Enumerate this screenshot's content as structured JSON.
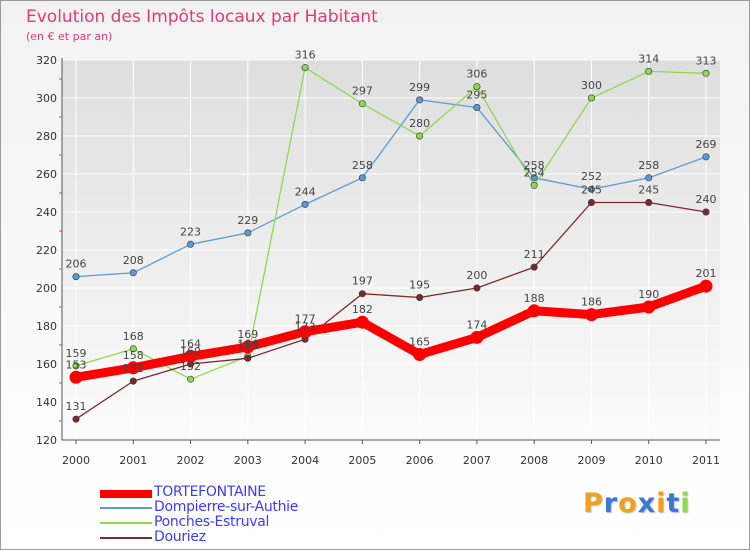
{
  "chart_data": {
    "type": "line",
    "title": "Evolution des Impôts locaux par Habitant",
    "subtitle": "(en € et par an)",
    "xlabel": "",
    "ylabel": "",
    "ylim": [
      120,
      320
    ],
    "yticks": [
      120,
      140,
      160,
      180,
      200,
      220,
      240,
      260,
      280,
      300,
      320
    ],
    "categories": [
      "2000",
      "2001",
      "2002",
      "2003",
      "2004",
      "2005",
      "2006",
      "2007",
      "2008",
      "2009",
      "2010",
      "2011"
    ],
    "grid": true,
    "legend_position": "bottom-left",
    "series": [
      {
        "name": "TORTEFONTAINE",
        "color": "#ff0000",
        "values": [
          153,
          158,
          164,
          169,
          177,
          182,
          165,
          174,
          188,
          186,
          190,
          201
        ],
        "labels": [
          "153",
          "158",
          "164",
          "169",
          "177",
          "182",
          "165",
          "174",
          "188",
          "186",
          "190",
          "201"
        ],
        "emphasis": true
      },
      {
        "name": "Dompierre-sur-Authie",
        "color": "#5b9bd5",
        "values": [
          206,
          208,
          223,
          229,
          244,
          258,
          299,
          295,
          258,
          252,
          258,
          269
        ],
        "labels": [
          "206",
          "208",
          "223",
          "229",
          "244",
          "258",
          "299",
          "295",
          "258",
          "252",
          "258",
          "269"
        ]
      },
      {
        "name": "Ponches-Estruval",
        "color": "#8fd94f",
        "values": [
          159,
          168,
          152,
          164,
          316,
          297,
          280,
          306,
          254,
          300,
          314,
          313
        ],
        "labels": [
          "159",
          "168",
          "152",
          "164",
          "316",
          "297",
          "280",
          "306",
          "254",
          "300",
          "314",
          "313"
        ]
      },
      {
        "name": "Douriez",
        "color": "#7a2a2a",
        "values": [
          131,
          151,
          160,
          163,
          173,
          197,
          195,
          200,
          211,
          245,
          245,
          240
        ],
        "labels": [
          "131",
          "151",
          "160",
          "163",
          "173",
          "197",
          "195",
          "200",
          "211",
          "245",
          "245",
          "240"
        ]
      }
    ]
  },
  "logo": {
    "text": "Proxiti",
    "letters": [
      "P",
      "r",
      "o",
      "x",
      "i",
      "t",
      "i"
    ],
    "colors": [
      "#f0a020",
      "#3a78d8",
      "#f0a020",
      "#3a78d8",
      "#f0a020",
      "#3a78d8",
      "#8fd94f"
    ]
  }
}
